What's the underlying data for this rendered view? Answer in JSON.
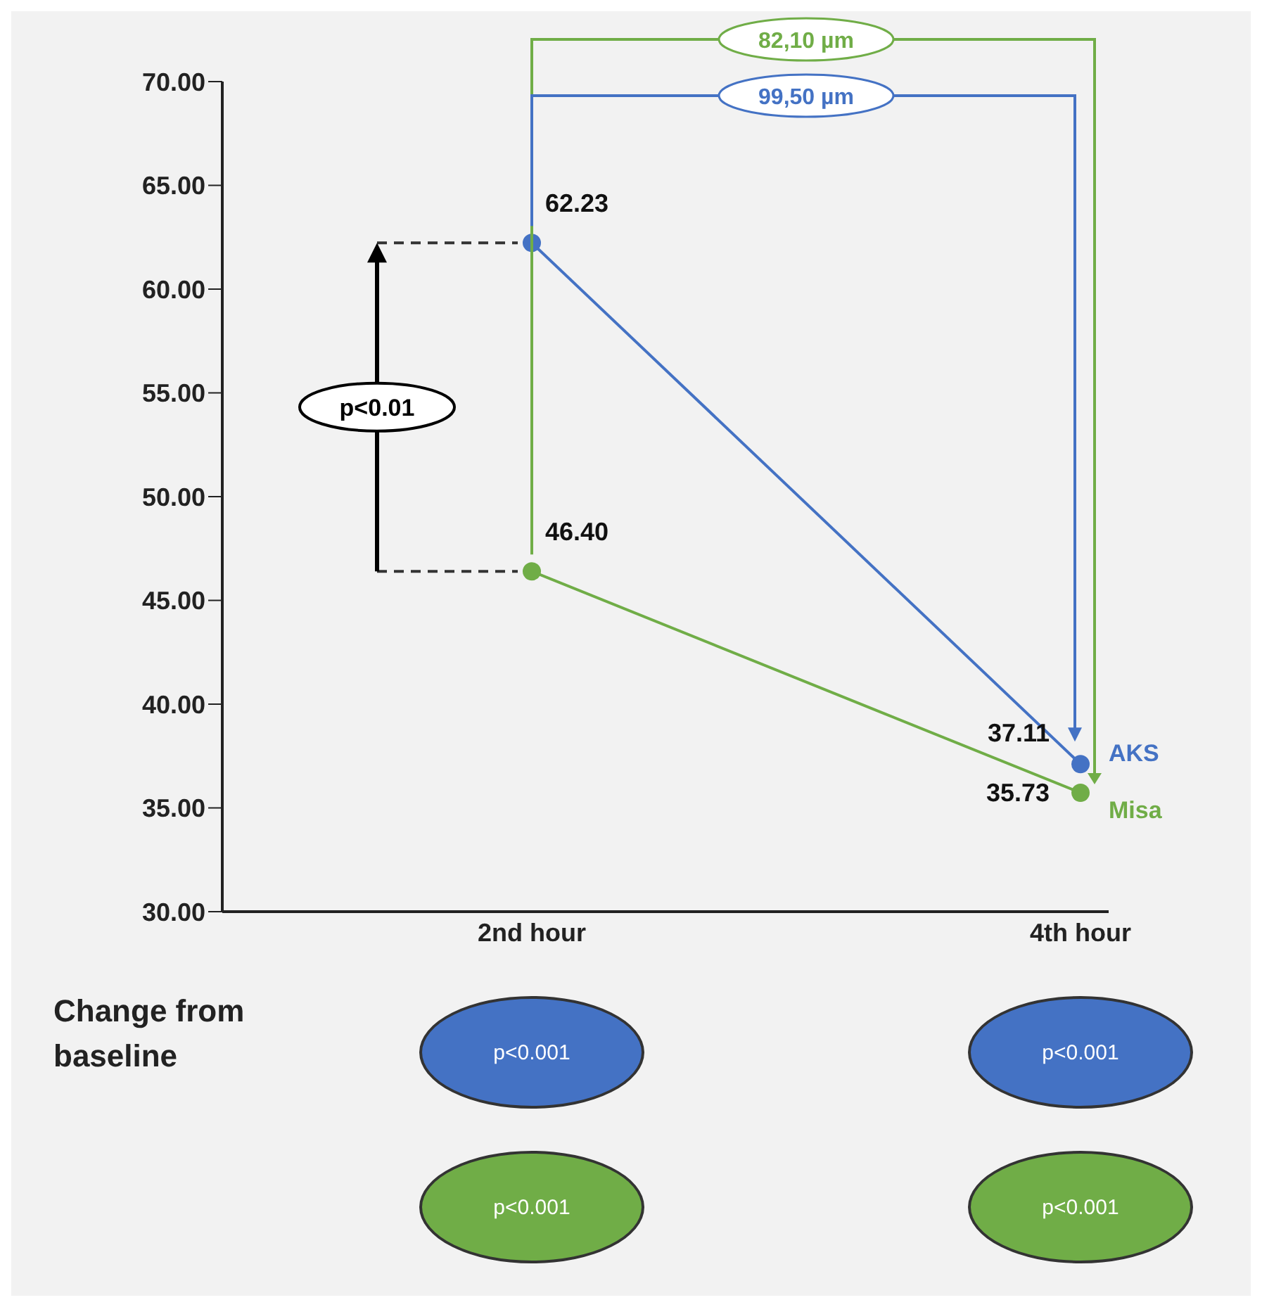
{
  "chart_data": {
    "type": "line",
    "categories": [
      "2nd hour",
      "4th hour"
    ],
    "series": [
      {
        "name": "AKS",
        "color": "#4472c4",
        "values": [
          62.23,
          37.11
        ],
        "value_labels": [
          "62.23",
          "37.11"
        ]
      },
      {
        "name": "Misa",
        "color": "#70ad47",
        "values": [
          46.4,
          35.73
        ],
        "value_labels": [
          "46.40",
          "35.73"
        ]
      }
    ],
    "ylim": [
      30,
      70
    ],
    "yticks": [
      {
        "value": 30,
        "label": "30.00"
      },
      {
        "value": 35,
        "label": "35.00"
      },
      {
        "value": 40,
        "label": "40.00"
      },
      {
        "value": 45,
        "label": "45.00"
      },
      {
        "value": 50,
        "label": "50.00"
      },
      {
        "value": 55,
        "label": "55.00"
      },
      {
        "value": 60,
        "label": "60.00"
      },
      {
        "value": 65,
        "label": "65.00"
      },
      {
        "value": 70,
        "label": "70.00"
      }
    ],
    "grid": false,
    "legend": "right",
    "marker": "circle",
    "line_style": "solid",
    "annotations": [
      "82,10 µm",
      "99,50 µm",
      "p<0.01",
      "Change from baseline",
      "p<0.001",
      "p<0.001",
      "p<0.001",
      "p<0.001"
    ]
  }
}
